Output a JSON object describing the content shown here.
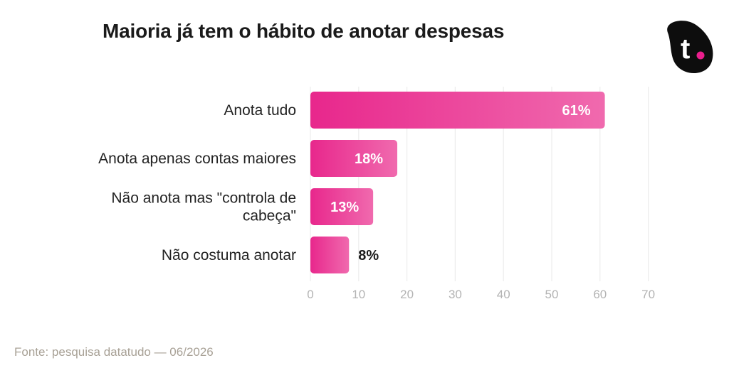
{
  "title": "Maioria já tem o hábito de anotar despesas",
  "logo": {
    "text": "t",
    "icon": "brand-logo-icon",
    "color": "#0d0d0d",
    "dot_color": "#e91e8c"
  },
  "source": "Fonte: pesquisa datatudo — 06/2026",
  "colors": {
    "bar_start": "#e8278c",
    "bar_end": "#f06aae",
    "grid": "#ececec"
  },
  "chart_data": {
    "type": "bar",
    "orientation": "horizontal",
    "title": "Maioria já tem o hábito de anotar despesas",
    "categories": [
      [
        "Anota tudo"
      ],
      [
        "Anota apenas contas maiores"
      ],
      [
        "Não anota mas \"controla de",
        "cabeça\""
      ],
      [
        "Não costuma anotar"
      ]
    ],
    "values": [
      61,
      18,
      13,
      8
    ],
    "value_labels": [
      "61%",
      "18%",
      "13%",
      "8%"
    ],
    "xlim": [
      0,
      70
    ],
    "xticks": [
      0,
      10,
      20,
      30,
      40,
      50,
      60,
      70
    ],
    "grid": true,
    "legend": "none"
  }
}
